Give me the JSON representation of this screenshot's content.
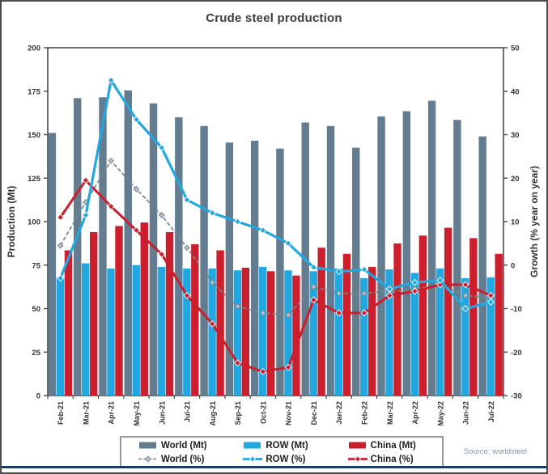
{
  "title": "Crude steel production",
  "source": "Source: worldsteel",
  "colors": {
    "world_bar": "#647c90",
    "row_bar": "#22a7e0",
    "china_bar": "#cb1f2d",
    "world_line": "#76868f",
    "world_marker_fill": "#b8c1c9",
    "row_line": "#22a7e0",
    "china_line": "#cb1f2d",
    "axis": "#4a4a4a",
    "tick_text": "#333333",
    "title_text": "#3d3d3d",
    "source_text": "#8495a5",
    "bottom_rule": "#1c3b61"
  },
  "chart_data": {
    "type": "bar",
    "subtype": "grouped bars with overlaid lines (dual axis)",
    "title": "Crude steel production",
    "categories": [
      "Feb-21",
      "Mar-21",
      "Apr-21",
      "May-21",
      "Jun-21",
      "Jul-21",
      "Aug-21",
      "Sep-21",
      "Oct-21",
      "Nov-21",
      "Dec-21",
      "Jan-22",
      "Feb-22",
      "Mar-22",
      "Apr-22",
      "May-22",
      "Jun-22",
      "Jul-22"
    ],
    "left_axis": {
      "label": "Production (Mt)",
      "min": 0,
      "max": 200,
      "step": 25
    },
    "right_axis": {
      "label": "Growth (% year on year)",
      "min": -30,
      "max": 50,
      "step": 10
    },
    "bar_series": [
      {
        "name": "World (Mt)",
        "axis": "left",
        "color": "#647c90",
        "values": [
          151,
          171,
          171.5,
          175.5,
          168,
          160,
          155,
          145.5,
          146.5,
          142,
          157,
          155,
          142.5,
          160.5,
          163.5,
          169.5,
          158.5,
          149
        ]
      },
      {
        "name": "ROW (Mt)",
        "axis": "left",
        "color": "#22a7e0",
        "values": [
          68,
          76,
          73,
          75,
          74,
          73,
          73,
          72,
          74,
          72,
          71.5,
          73,
          67.5,
          72.5,
          70.5,
          73,
          67.5,
          68
        ]
      },
      {
        "name": "China (Mt)",
        "axis": "left",
        "color": "#cb1f2d",
        "values": [
          83.5,
          94,
          97.5,
          99.5,
          94,
          87,
          83.5,
          73.5,
          71.5,
          69,
          85,
          81.5,
          74,
          87.5,
          92,
          96.5,
          90.5,
          81.5
        ]
      }
    ],
    "line_series": [
      {
        "name": "World (%)",
        "axis": "right",
        "color": "#76868f",
        "style": "dashed-diamond",
        "values": [
          4.5,
          14.5,
          24,
          17.5,
          11.5,
          4,
          -4,
          -9.5,
          -11,
          -11.5,
          -5,
          -6.5,
          -6.5,
          -6,
          -5.5,
          -4.5,
          -7,
          -7.5
        ]
      },
      {
        "name": "ROW (%)",
        "axis": "right",
        "color": "#22a7e0",
        "style": "solid-diamond",
        "values": [
          -3,
          11.5,
          42.5,
          33.5,
          27,
          15,
          12,
          10,
          8,
          5,
          -0.5,
          -1.5,
          -1,
          -5.5,
          -4,
          -3.5,
          -10,
          -8.5
        ]
      },
      {
        "name": "China (%)",
        "axis": "right",
        "color": "#cb1f2d",
        "style": "solid-diamond",
        "values": [
          11,
          19.5,
          13.5,
          8,
          2.5,
          -7,
          -13.5,
          -22.5,
          -24.5,
          -23.5,
          -8,
          -11,
          -11,
          -7,
          -6,
          -4.5,
          -4.5,
          -7
        ]
      }
    ],
    "legend_position": "bottom-center",
    "grid": false,
    "source": "Source: worldsteel"
  }
}
